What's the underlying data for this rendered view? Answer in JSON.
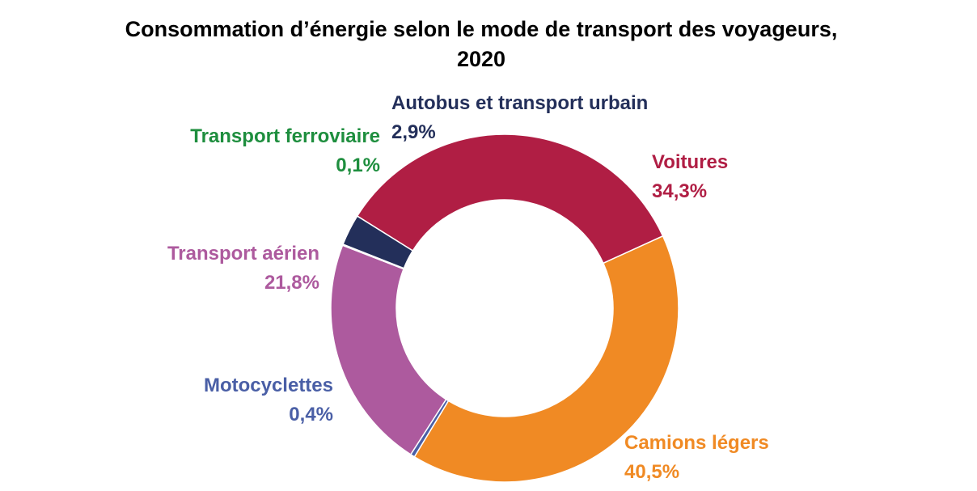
{
  "chart_data": {
    "type": "pie",
    "variant": "donut",
    "title_line1": "Consommation d’énergie selon le mode de transport des voyageurs,",
    "title_line2": "2020",
    "unit": "%",
    "legend": "none",
    "slices": [
      {
        "name": "Voitures",
        "value": 34.3,
        "value_label": "34,3%",
        "color": "#B01E44"
      },
      {
        "name": "Camions légers",
        "value": 40.5,
        "value_label": "40,5%",
        "color": "#F08A24"
      },
      {
        "name": "Motocyclettes",
        "value": 0.4,
        "value_label": "0,4%",
        "color": "#4A5FA6"
      },
      {
        "name": "Transport aérien",
        "value": 21.8,
        "value_label": "21,8%",
        "color": "#AD5A9E"
      },
      {
        "name": "Transport ferroviaire",
        "value": 0.1,
        "value_label": "0,1%",
        "color": "#1E8E3E"
      },
      {
        "name": "Autobus et transport urbain",
        "value": 2.9,
        "value_label": "2,9%",
        "color": "#232F5A"
      }
    ]
  }
}
